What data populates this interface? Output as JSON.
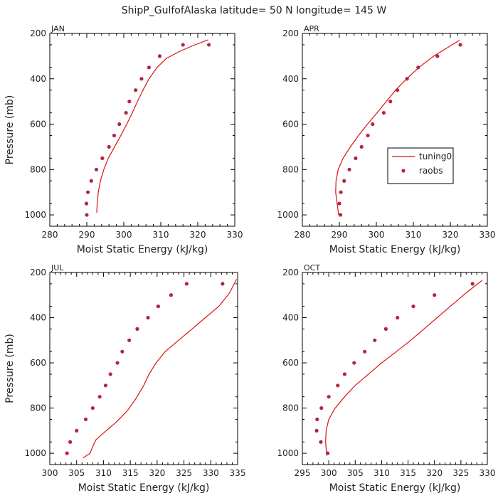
{
  "title": "ShipP_GulfofAlaska   latitude= 50 N longitude= 145 W",
  "colors": {
    "model": "#dd1111",
    "obs": "#b3234a",
    "text": "#222222",
    "frame": "#000000"
  },
  "legend": {
    "entries": [
      {
        "label": "tuning0",
        "kind": "line"
      },
      {
        "label": "raobs",
        "kind": "marker"
      }
    ]
  },
  "chart_data": [
    {
      "type": "line",
      "panel": "JAN",
      "xlabel": "Moist Static Energy (kJ/kg)",
      "ylabel": "Pressure (mb)",
      "xlim": [
        280,
        330
      ],
      "ylim": [
        200,
        1050
      ],
      "y_inverted": true,
      "xticks": [
        280,
        290,
        300,
        310,
        320,
        330
      ],
      "yticks": [
        200,
        400,
        600,
        800,
        1000
      ],
      "series": [
        {
          "name": "tuning0",
          "style": "line",
          "x": [
            292.7,
            292.8,
            293.1,
            293.7,
            294.6,
            295.8,
            297.5,
            299.2,
            300.8,
            302.3,
            303.7,
            305.2,
            306.8,
            309.0,
            311.5,
            315.0,
            318.5,
            322.8
          ],
          "y": [
            990,
            950,
            900,
            850,
            800,
            750,
            700,
            650,
            600,
            550,
            500,
            450,
            400,
            350,
            310,
            280,
            255,
            228
          ]
        },
        {
          "name": "raobs",
          "style": "marker",
          "x": [
            290.0,
            289.9,
            290.3,
            291.2,
            292.6,
            294.2,
            296.0,
            297.4,
            298.8,
            300.6,
            301.5,
            303.2,
            304.8,
            306.8,
            309.7,
            316.0,
            323.0
          ],
          "y": [
            1000,
            950,
            900,
            850,
            800,
            750,
            700,
            650,
            600,
            550,
            500,
            450,
            400,
            350,
            300,
            250,
            250
          ]
        }
      ]
    },
    {
      "type": "line",
      "panel": "APR",
      "xlabel": "Moist Static Energy (kJ/kg)",
      "ylabel": "",
      "xlim": [
        280,
        330
      ],
      "ylim": [
        200,
        1050
      ],
      "y_inverted": true,
      "xticks": [
        280,
        290,
        300,
        310,
        320,
        330
      ],
      "yticks": [
        200,
        400,
        600,
        800,
        1000
      ],
      "series": [
        {
          "name": "tuning0",
          "style": "line",
          "x": [
            289.8,
            289.4,
            289.0,
            289.1,
            289.7,
            291.0,
            293.0,
            295.2,
            297.6,
            300.2,
            302.7,
            305.2,
            308.2,
            311.5,
            315.5,
            319.5,
            322.5
          ],
          "y": [
            1000,
            950,
            900,
            850,
            800,
            750,
            700,
            650,
            600,
            550,
            500,
            450,
            400,
            350,
            300,
            260,
            230
          ]
        },
        {
          "name": "raobs",
          "style": "marker",
          "x": [
            290.3,
            290.0,
            290.4,
            291.3,
            292.7,
            294.4,
            296.0,
            297.7,
            299.0,
            302.0,
            303.8,
            305.7,
            308.3,
            311.3,
            316.5,
            322.7
          ],
          "y": [
            1000,
            950,
            900,
            850,
            800,
            750,
            700,
            650,
            600,
            550,
            500,
            450,
            400,
            350,
            300,
            250
          ]
        }
      ]
    },
    {
      "type": "line",
      "panel": "JUL",
      "xlabel": "Moist Static Energy (kJ/kg)",
      "ylabel": "Pressure (mb)",
      "xlim": [
        300,
        335
      ],
      "ylim": [
        200,
        1050
      ],
      "y_inverted": true,
      "xticks": [
        300,
        305,
        310,
        315,
        320,
        325,
        330,
        335
      ],
      "yticks": [
        200,
        400,
        600,
        800,
        1000
      ],
      "series": [
        {
          "name": "tuning0",
          "style": "line",
          "x": [
            306.2,
            307.5,
            308.0,
            308.6,
            310.5,
            312.5,
            314.5,
            316.0,
            317.5,
            318.5,
            319.8,
            321.5,
            324.0,
            326.5,
            329.0,
            331.5,
            333.5,
            334.8
          ],
          "y": [
            1020,
            1000,
            970,
            940,
            900,
            860,
            810,
            760,
            700,
            650,
            600,
            550,
            500,
            450,
            400,
            350,
            290,
            230
          ]
        },
        {
          "name": "raobs",
          "style": "marker",
          "x": [
            303.2,
            303.8,
            305.0,
            306.7,
            308.0,
            309.3,
            310.4,
            311.3,
            312.6,
            313.5,
            314.8,
            316.3,
            318.3,
            320.2,
            322.6,
            325.5,
            332.2
          ],
          "y": [
            1000,
            950,
            900,
            850,
            800,
            750,
            700,
            650,
            600,
            550,
            500,
            450,
            400,
            350,
            300,
            250,
            250
          ]
        }
      ]
    },
    {
      "type": "line",
      "panel": "OCT",
      "xlabel": "Moist Static Energy (kJ/kg)",
      "ylabel": "",
      "xlim": [
        295,
        330
      ],
      "ylim": [
        200,
        1050
      ],
      "y_inverted": true,
      "xticks": [
        295,
        300,
        305,
        310,
        315,
        320,
        325,
        330
      ],
      "yticks": [
        200,
        400,
        600,
        800,
        1000
      ],
      "series": [
        {
          "name": "tuning0",
          "style": "line",
          "x": [
            299.6,
            299.4,
            299.5,
            300.0,
            301.2,
            303.0,
            305.0,
            307.5,
            310.0,
            312.8,
            315.5,
            318.0,
            320.5,
            323.0,
            326.0,
            329.0
          ],
          "y": [
            1010,
            950,
            900,
            850,
            800,
            750,
            700,
            650,
            600,
            550,
            500,
            450,
            400,
            350,
            290,
            235
          ]
        },
        {
          "name": "raobs",
          "style": "marker",
          "x": [
            299.8,
            298.5,
            297.7,
            297.8,
            298.6,
            300.0,
            301.7,
            303.0,
            304.8,
            306.8,
            308.7,
            310.8,
            313.0,
            316.0,
            320.0,
            327.2
          ],
          "y": [
            1000,
            950,
            900,
            850,
            800,
            750,
            700,
            650,
            600,
            550,
            500,
            450,
            400,
            350,
            300,
            250
          ]
        }
      ]
    }
  ]
}
